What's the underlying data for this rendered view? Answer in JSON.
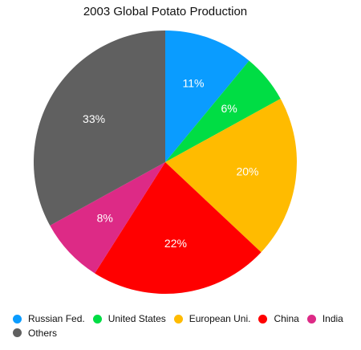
{
  "chart_data": {
    "type": "pie",
    "title": "2003 Global Potato Production",
    "slices": [
      {
        "label": "Russian Fed.",
        "value": 11,
        "display": "11%",
        "color": "#0a9cff"
      },
      {
        "label": "United States",
        "value": 6,
        "display": "6%",
        "color": "#00dd44"
      },
      {
        "label": "European Uni.",
        "value": 20,
        "display": "20%",
        "color": "#ffbb00"
      },
      {
        "label": "China",
        "value": 22,
        "display": "22%",
        "color": "#ff0000"
      },
      {
        "label": "India",
        "value": 8,
        "display": "8%",
        "color": "#dd2a86"
      },
      {
        "label": "Others",
        "value": 33,
        "display": "33%",
        "color": "#606060"
      }
    ],
    "start_angle": "12 o'clock",
    "direction": "clockwise",
    "legend_position": "bottom"
  }
}
